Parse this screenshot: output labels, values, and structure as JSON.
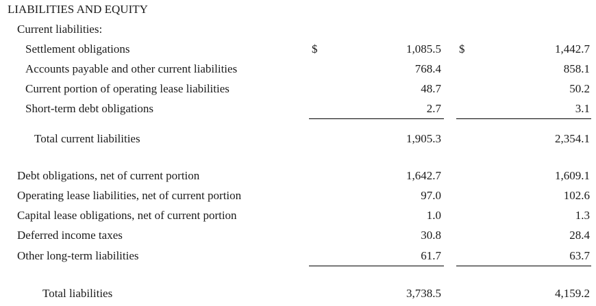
{
  "section_title": "LIABILITIES AND EQUITY",
  "current_liabilities": {
    "heading": "Current liabilities:",
    "rows": [
      {
        "label": "Settlement obligations",
        "dollar1": "$",
        "col1": "1,085.5",
        "dollar2": "$",
        "col2": "1,442.7"
      },
      {
        "label": "Accounts payable and other current liabilities",
        "col1": "768.4",
        "col2": "858.1"
      },
      {
        "label": "Current portion of operating lease liabilities",
        "col1": "48.7",
        "col2": "50.2"
      },
      {
        "label": "Short-term debt obligations",
        "col1": "2.7",
        "col2": "3.1"
      }
    ],
    "total": {
      "label": "Total current liabilities",
      "col1": "1,905.3",
      "col2": "2,354.1"
    }
  },
  "noncurrent_liabilities": {
    "rows": [
      {
        "label": "Debt obligations, net of current portion",
        "col1": "1,642.7",
        "col2": "1,609.1"
      },
      {
        "label": "Operating lease liabilities, net of current portion",
        "col1": "97.0",
        "col2": "102.6"
      },
      {
        "label": "Capital lease obligations, net of current portion",
        "col1": "1.0",
        "col2": "1.3"
      },
      {
        "label": "Deferred income taxes",
        "col1": "30.8",
        "col2": "28.4"
      },
      {
        "label": "Other long-term liabilities",
        "col1": "61.7",
        "col2": "63.7"
      }
    ]
  },
  "total_liabilities": {
    "label": "Total liabilities",
    "col1": "3,738.5",
    "col2": "4,159.2"
  }
}
